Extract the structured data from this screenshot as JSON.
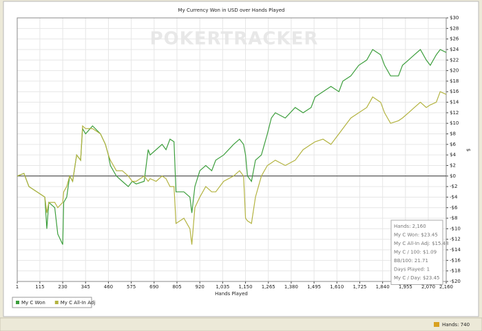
{
  "chart_data": {
    "type": "line",
    "title": "My Currency Won in USD over Hands Played",
    "watermark": "POKERTRACKER",
    "xlabel": "Hands Played",
    "ylabel": "$",
    "x": [
      1,
      35,
      60,
      100,
      140,
      150,
      160,
      190,
      205,
      230,
      235,
      250,
      265,
      280,
      300,
      320,
      330,
      345,
      380,
      420,
      445,
      460,
      470,
      500,
      530,
      560,
      580,
      600,
      640,
      660,
      670,
      700,
      730,
      750,
      770,
      790,
      800,
      840,
      870,
      880,
      895,
      920,
      950,
      980,
      1000,
      1040,
      1090,
      1120,
      1140,
      1150,
      1160,
      1180,
      1200,
      1230,
      1260,
      1280,
      1300,
      1350,
      1400,
      1440,
      1480,
      1500,
      1540,
      1580,
      1620,
      1640,
      1680,
      1720,
      1760,
      1790,
      1830,
      1850,
      1880,
      1920,
      1940,
      1970,
      2000,
      2030,
      2060,
      2080,
      2110,
      2130,
      2160
    ],
    "series": [
      {
        "name": "My C Won",
        "color": "#3c9e3c",
        "values": [
          0,
          0.5,
          -2,
          -3,
          -4,
          -10,
          -5,
          -6,
          -11,
          -13,
          -5,
          -4,
          0,
          -1,
          4,
          3,
          9,
          8,
          9.5,
          8,
          6,
          4,
          2,
          0,
          -1,
          -2,
          -1,
          -1.5,
          -1,
          5,
          4,
          5,
          6,
          5,
          7,
          6.5,
          -3,
          -3,
          -4,
          -7,
          -2,
          1,
          2,
          1,
          3,
          4,
          6,
          7,
          6,
          4,
          0,
          -1,
          3,
          4,
          8,
          11,
          12,
          11,
          13,
          12,
          13,
          15,
          16,
          17,
          16,
          18,
          19,
          21,
          22,
          24,
          23,
          21,
          19,
          19,
          21,
          22,
          23,
          24,
          22,
          21,
          23,
          24,
          23.45
        ]
      },
      {
        "name": "My C All-In Adj",
        "color": "#b3b340",
        "values": [
          0,
          0.5,
          -2,
          -3,
          -4,
          -7,
          -5,
          -5,
          -6,
          -5,
          -3,
          -2,
          0,
          -1,
          4,
          3,
          9.5,
          9,
          9,
          8,
          6,
          4,
          3,
          1,
          1,
          0,
          -1,
          -1,
          0,
          -1,
          -0.5,
          -1,
          0,
          -0.5,
          -2,
          -2,
          -9,
          -8,
          -10,
          -13,
          -6,
          -4,
          -2,
          -3,
          -3,
          -1,
          0,
          1,
          0,
          -8,
          -8.5,
          -9,
          -4,
          0,
          2,
          2.5,
          3,
          2,
          3,
          5,
          6,
          6.5,
          7,
          6,
          8,
          9,
          11,
          12,
          13,
          15,
          14,
          12,
          10,
          10.5,
          11,
          12,
          13,
          14,
          13,
          13.5,
          14,
          16,
          15.48
        ]
      }
    ],
    "xlim": [
      1,
      2160
    ],
    "xticks": [
      1,
      115,
      230,
      345,
      460,
      575,
      690,
      805,
      920,
      {
        "value": 1035,
        "label": "1,035"
      },
      {
        "value": 1150,
        "label": "1,150"
      },
      {
        "value": 1265,
        "label": "1,265"
      },
      {
        "value": 1380,
        "label": "1,380"
      },
      {
        "value": 1495,
        "label": "1,495"
      },
      {
        "value": 1610,
        "label": "1,610"
      },
      {
        "value": 1725,
        "label": "1,725"
      },
      {
        "value": 1840,
        "label": "1,840"
      },
      {
        "value": 1955,
        "label": "1,955"
      },
      {
        "value": 2070,
        "label": "2,070"
      },
      {
        "value": 2160,
        "label": "2,160"
      }
    ],
    "ylim": [
      -20,
      30
    ],
    "yticks": [
      {
        "value": -20,
        "label": "-$20"
      },
      {
        "value": -18,
        "label": "-$18"
      },
      {
        "value": -16,
        "label": "-$16"
      },
      {
        "value": -14,
        "label": "-$14"
      },
      {
        "value": -12,
        "label": "-$12"
      },
      {
        "value": -10,
        "label": "-$10"
      },
      {
        "value": -8,
        "label": "-$8"
      },
      {
        "value": -6,
        "label": "-$6"
      },
      {
        "value": -4,
        "label": "-$4"
      },
      {
        "value": -2,
        "label": "-$2"
      },
      {
        "value": 0,
        "label": "$0"
      },
      {
        "value": 2,
        "label": "$2"
      },
      {
        "value": 4,
        "label": "$4"
      },
      {
        "value": 6,
        "label": "$6"
      },
      {
        "value": 8,
        "label": "$8"
      },
      {
        "value": 10,
        "label": "$10"
      },
      {
        "value": 12,
        "label": "$12"
      },
      {
        "value": 14,
        "label": "$14"
      },
      {
        "value": 16,
        "label": "$16"
      },
      {
        "value": 18,
        "label": "$18"
      },
      {
        "value": 20,
        "label": "$20"
      },
      {
        "value": 22,
        "label": "$22"
      },
      {
        "value": 24,
        "label": "$24"
      },
      {
        "value": 26,
        "label": "$26"
      },
      {
        "value": 28,
        "label": "$28"
      },
      {
        "value": 30,
        "label": "$30"
      }
    ],
    "grid": true,
    "legend": "bottom-left",
    "info_box": [
      "Hands: 2,160",
      "My C Won: $23.45",
      "My C All-In Adj: $15.48",
      "My C / 100: $1.09",
      "BB/100: 21.71",
      "Days Played: 1",
      "My C / Day: $23.45"
    ],
    "status": "Hands: 740"
  }
}
